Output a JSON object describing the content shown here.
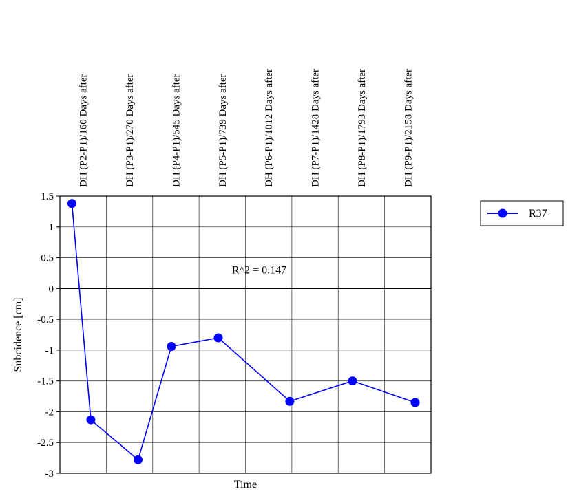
{
  "chart_data": {
    "type": "line",
    "title": "",
    "xlabel": "Time",
    "ylabel": "Subcidence [cm]",
    "ylim": [
      -3,
      1.5
    ],
    "yticks": [
      1.5,
      1,
      0.5,
      0,
      -0.5,
      -1,
      -1.5,
      -2,
      -2.5,
      -3
    ],
    "categories": [
      "DH (P2-P1)/160 Days after",
      "DH (P3-P1)/270 Days after",
      "DH (P4-P1)/545 Days after",
      "DH (P5-P1)/739 Days after",
      "DH (P6-P1)/1012 Days after",
      "DH (P7-P1)/1428 Days after",
      "DH (P8-P1)/1793 Days after",
      "DH (P9-P1)/2158 Days after"
    ],
    "category_labels_position": "top",
    "grid": true,
    "legend": "right",
    "series": [
      {
        "name": "R37",
        "color": "#0000ff",
        "marker": "circle",
        "points": [
          {
            "x": 160,
            "y": 1.38
          },
          {
            "x": 270,
            "y": -2.13
          },
          {
            "x": 545,
            "y": -2.78
          },
          {
            "x": 739,
            "y": -0.94
          },
          {
            "x": 1012,
            "y": -0.8
          },
          {
            "x": 1428,
            "y": -1.83
          },
          {
            "x": 1793,
            "y": -1.5
          },
          {
            "x": 2158,
            "y": -1.85
          }
        ]
      }
    ],
    "annotations": [
      {
        "text": "R^2 = 0.147",
        "x": 1250,
        "y": 0.3
      }
    ]
  }
}
